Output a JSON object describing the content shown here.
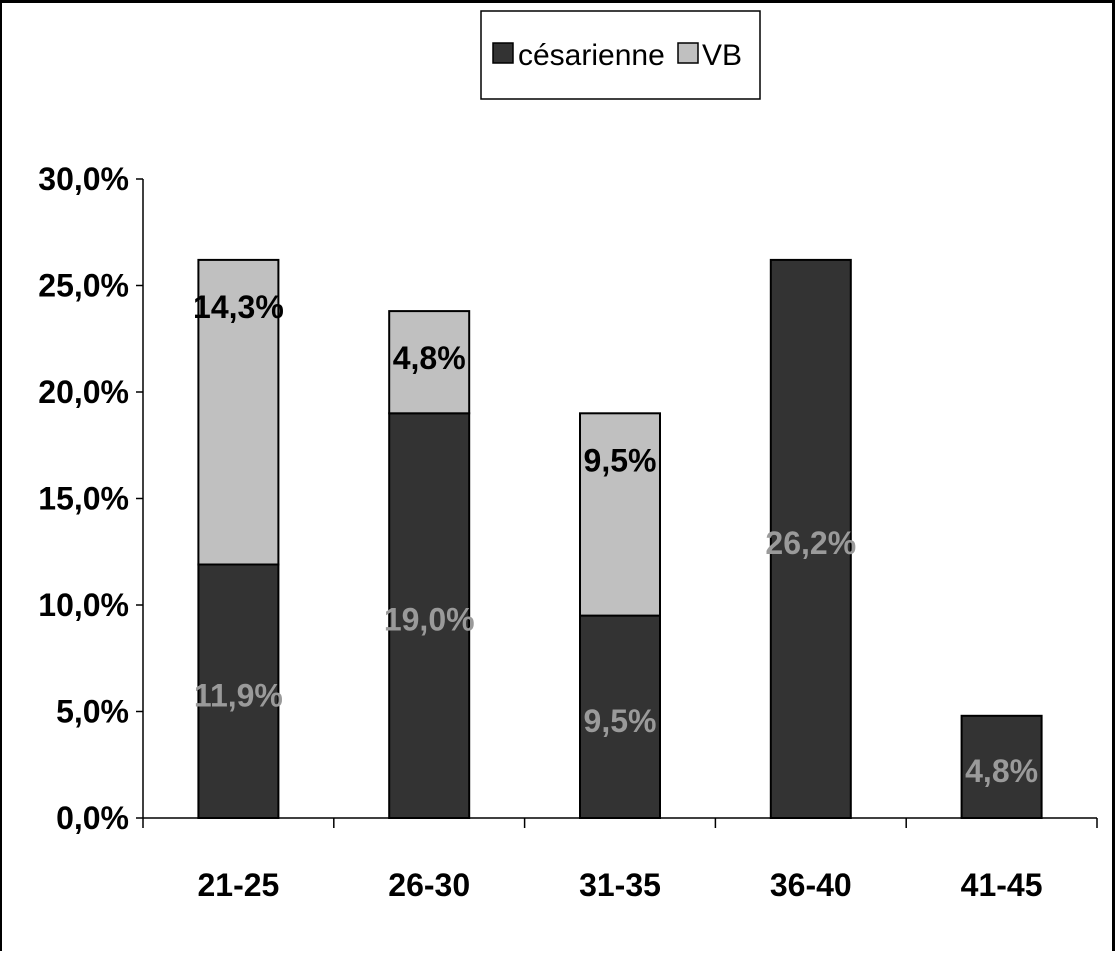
{
  "chart_data": {
    "type": "bar",
    "stacked": true,
    "categories": [
      "21-25",
      "26-30",
      "31-35",
      "36-40",
      "41-45"
    ],
    "series": [
      {
        "name": "césarienne",
        "color": "#333333",
        "values": [
          11.9,
          19.0,
          9.5,
          26.2,
          4.8
        ],
        "labels": [
          "11,9%",
          "19,0%",
          "9,5%",
          "26,2%",
          "4,8%"
        ],
        "label_color": "#9a9a9a"
      },
      {
        "name": "VB",
        "color": "#c0c0c0",
        "values": [
          14.3,
          4.8,
          9.5,
          0,
          0
        ],
        "labels": [
          "14,3%",
          "4,8%",
          "9,5%",
          "",
          ""
        ],
        "label_color": "#000000"
      }
    ],
    "ylim": [
      0,
      30
    ],
    "yticks": [
      0,
      5,
      10,
      15,
      20,
      25,
      30
    ],
    "ytick_labels": [
      "0,0%",
      "5,0%",
      "10,0%",
      "15,0%",
      "20,0%",
      "25,0%",
      "30,0%"
    ],
    "title": "",
    "xlabel": "",
    "ylabel": "",
    "grid": false,
    "legend_position": "top-center"
  }
}
